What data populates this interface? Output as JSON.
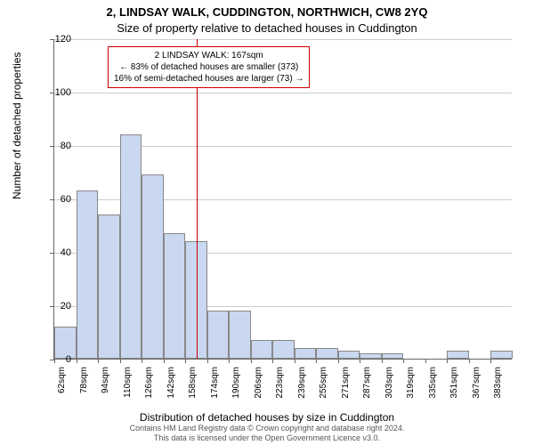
{
  "title_line1": "2, LINDSAY WALK, CUDDINGTON, NORTHWICH, CW8 2YQ",
  "title_line2": "Size of property relative to detached houses in Cuddington",
  "y_axis_label": "Number of detached properties",
  "x_axis_label": "Distribution of detached houses by size in Cuddington",
  "footer_line1": "Contains HM Land Registry data © Crown copyright and database right 2024.",
  "footer_line2": "This data is licensed under the Open Government Licence v3.0.",
  "chart": {
    "type": "histogram",
    "ylim": [
      0,
      120
    ],
    "ytick_step": 20,
    "bar_fill": "#c9d8f0",
    "bar_stroke": "#888888",
    "grid_color": "#cccccc",
    "marker_color": "#cc0000",
    "marker_x_value": 167,
    "x_ticks": [
      62,
      78,
      94,
      110,
      126,
      142,
      158,
      174,
      190,
      206,
      223,
      239,
      255,
      271,
      287,
      303,
      319,
      335,
      351,
      367,
      383
    ],
    "x_tick_suffix": "sqm",
    "bars": [
      {
        "x": 62,
        "h": 12
      },
      {
        "x": 78,
        "h": 63
      },
      {
        "x": 94,
        "h": 54
      },
      {
        "x": 110,
        "h": 84
      },
      {
        "x": 126,
        "h": 69
      },
      {
        "x": 142,
        "h": 47
      },
      {
        "x": 158,
        "h": 44
      },
      {
        "x": 174,
        "h": 18
      },
      {
        "x": 190,
        "h": 18
      },
      {
        "x": 206,
        "h": 7
      },
      {
        "x": 223,
        "h": 7
      },
      {
        "x": 239,
        "h": 4
      },
      {
        "x": 255,
        "h": 4
      },
      {
        "x": 271,
        "h": 3
      },
      {
        "x": 287,
        "h": 2
      },
      {
        "x": 303,
        "h": 2
      },
      {
        "x": 319,
        "h": 0
      },
      {
        "x": 335,
        "h": 0
      },
      {
        "x": 351,
        "h": 3
      },
      {
        "x": 367,
        "h": 0
      },
      {
        "x": 383,
        "h": 3
      }
    ]
  },
  "annotation": {
    "line1": "2 LINDSAY WALK: 167sqm",
    "line2": "← 83% of detached houses are smaller (373)",
    "line3": "16% of semi-detached houses are larger (73) →"
  }
}
